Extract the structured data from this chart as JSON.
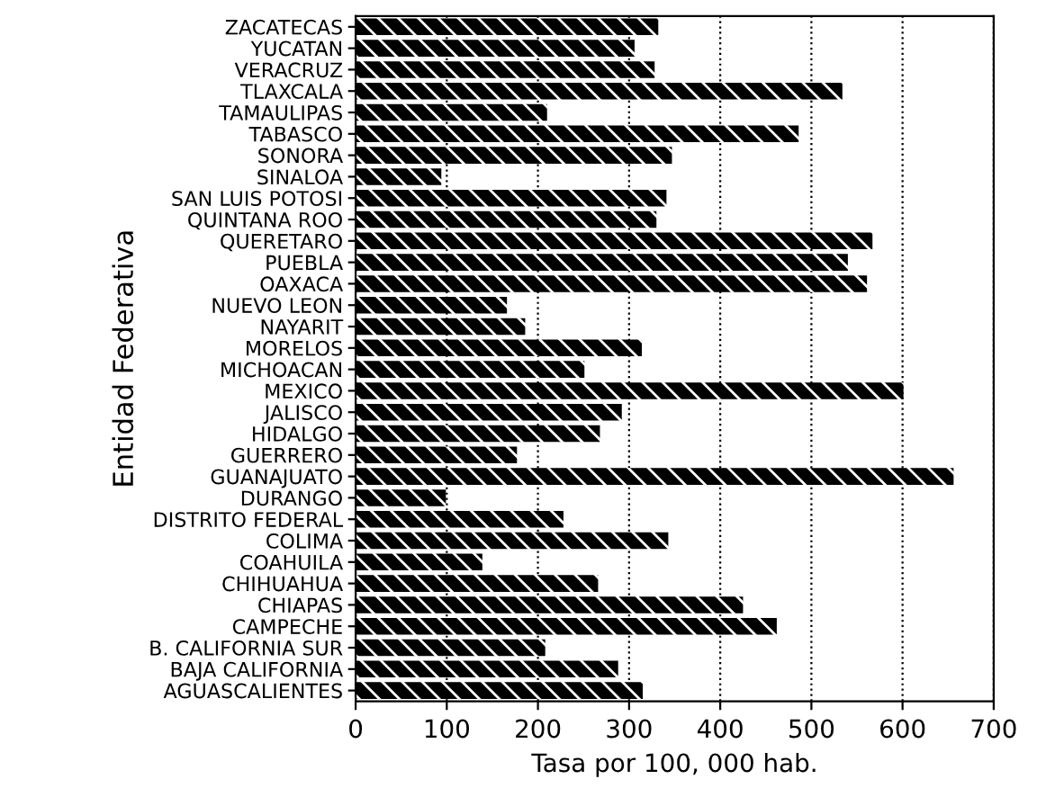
{
  "chart_data": {
    "type": "bar",
    "orientation": "horizontal",
    "xlabel": "Tasa por 100, 000 hab.",
    "ylabel": "Entidad Federativa",
    "categories": [
      "ZACATECAS",
      "YUCATAN",
      "VERACRUZ",
      "TLAXCALA",
      "TAMAULIPAS",
      "TABASCO",
      "SONORA",
      "SINALOA",
      "SAN LUIS POTOSI",
      "QUINTANA ROO",
      "QUERETARO",
      "PUEBLA",
      "OAXACA",
      "NUEVO LEON",
      "NAYARIT",
      "MORELOS",
      "MICHOACAN",
      "MEXICO",
      "JALISCO",
      "HIDALGO",
      "GUERRERO",
      "GUANAJUATO",
      "DURANGO",
      "DISTRITO FEDERAL",
      "COLIMA",
      "COAHUILA",
      "CHIHUAHUA",
      "CHIAPAS",
      "CAMPECHE",
      "B. CALIFORNIA SUR",
      "BAJA CALIFORNIA",
      "AGUASCALIENTES"
    ],
    "values": [
      332,
      306,
      328,
      534,
      210,
      486,
      347,
      94,
      341,
      330,
      567,
      540,
      561,
      166,
      186,
      314,
      251,
      601,
      292,
      268,
      177,
      656,
      99,
      228,
      343,
      139,
      266,
      425,
      462,
      208,
      288,
      315
    ],
    "color": "#000000",
    "xlim": [
      0,
      700
    ],
    "xticks": [
      0,
      100,
      200,
      300,
      400,
      500,
      600,
      700
    ],
    "grid": "x"
  }
}
